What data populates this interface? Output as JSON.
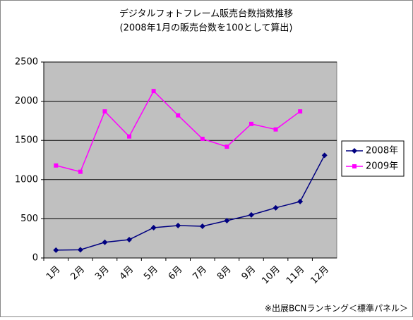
{
  "chart_data": {
    "type": "line",
    "title": "デジタルフォトフレーム販売台数指数推移",
    "subtitle": "(2008年1月の販売台数を100として算出)",
    "note": "※出展BCNランキング＜標準パネル＞",
    "categories": [
      "1月",
      "2月",
      "3月",
      "4月",
      "5月",
      "6月",
      "7月",
      "8月",
      "9月",
      "10月",
      "11月",
      "12月"
    ],
    "series": [
      {
        "name": "2008年",
        "color": "#000080",
        "marker": "diamond",
        "values": [
          100,
          105,
          200,
          234,
          387,
          414,
          405,
          477,
          550,
          640,
          720,
          1310
        ]
      },
      {
        "name": "2009年",
        "color": "#ff00ff",
        "marker": "square",
        "values": [
          1180,
          1100,
          1870,
          1550,
          2130,
          1820,
          1520,
          1420,
          1710,
          1640,
          1870,
          null
        ]
      }
    ],
    "ylim": [
      0,
      2500
    ],
    "yticks": [
      0,
      500,
      1000,
      1500,
      2000,
      2500
    ],
    "grid": true,
    "legend": "right"
  }
}
